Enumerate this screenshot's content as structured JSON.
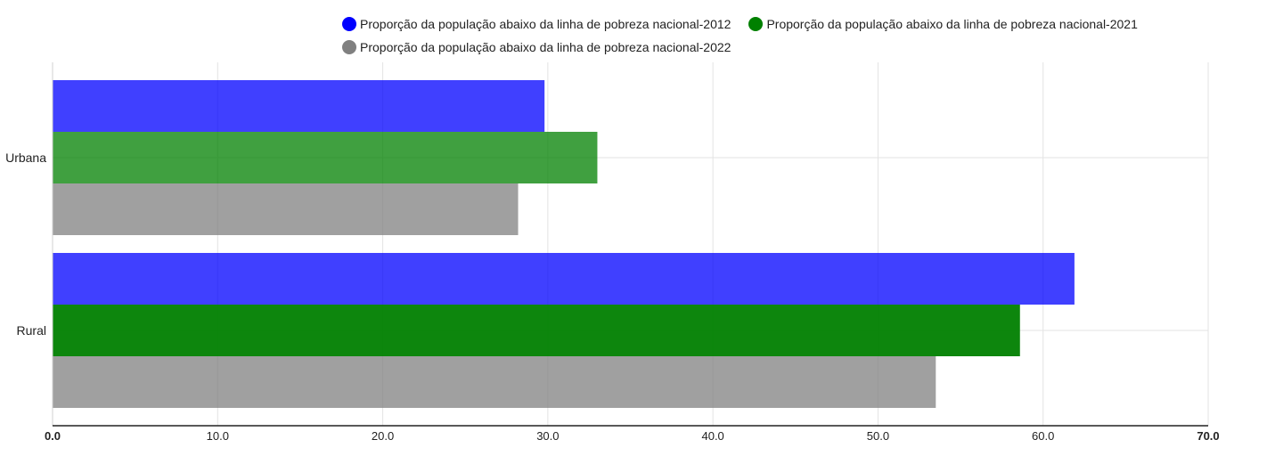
{
  "chart_data": {
    "type": "bar",
    "orientation": "horizontal",
    "categories": [
      "Urbana",
      "Rural"
    ],
    "series": [
      {
        "name": "Proporção da população abaixo da linha de pobreza nacional-2012",
        "color": "#0000ff",
        "values": [
          29.8,
          61.9
        ]
      },
      {
        "name": "Proporção da população abaixo da linha de pobreza nacional-2021",
        "color": "#008000",
        "values": [
          33.0,
          58.6
        ]
      },
      {
        "name": "Proporção da população abaixo da linha de pobreza nacional-2022",
        "color": "#808080",
        "values": [
          28.2,
          53.5
        ]
      }
    ],
    "xlim": [
      0,
      70
    ],
    "xticks": [
      "0.0",
      "10.0",
      "20.0",
      "30.0",
      "40.0",
      "50.0",
      "60.0",
      "70.0"
    ],
    "grid": true,
    "legend_position": "top"
  }
}
